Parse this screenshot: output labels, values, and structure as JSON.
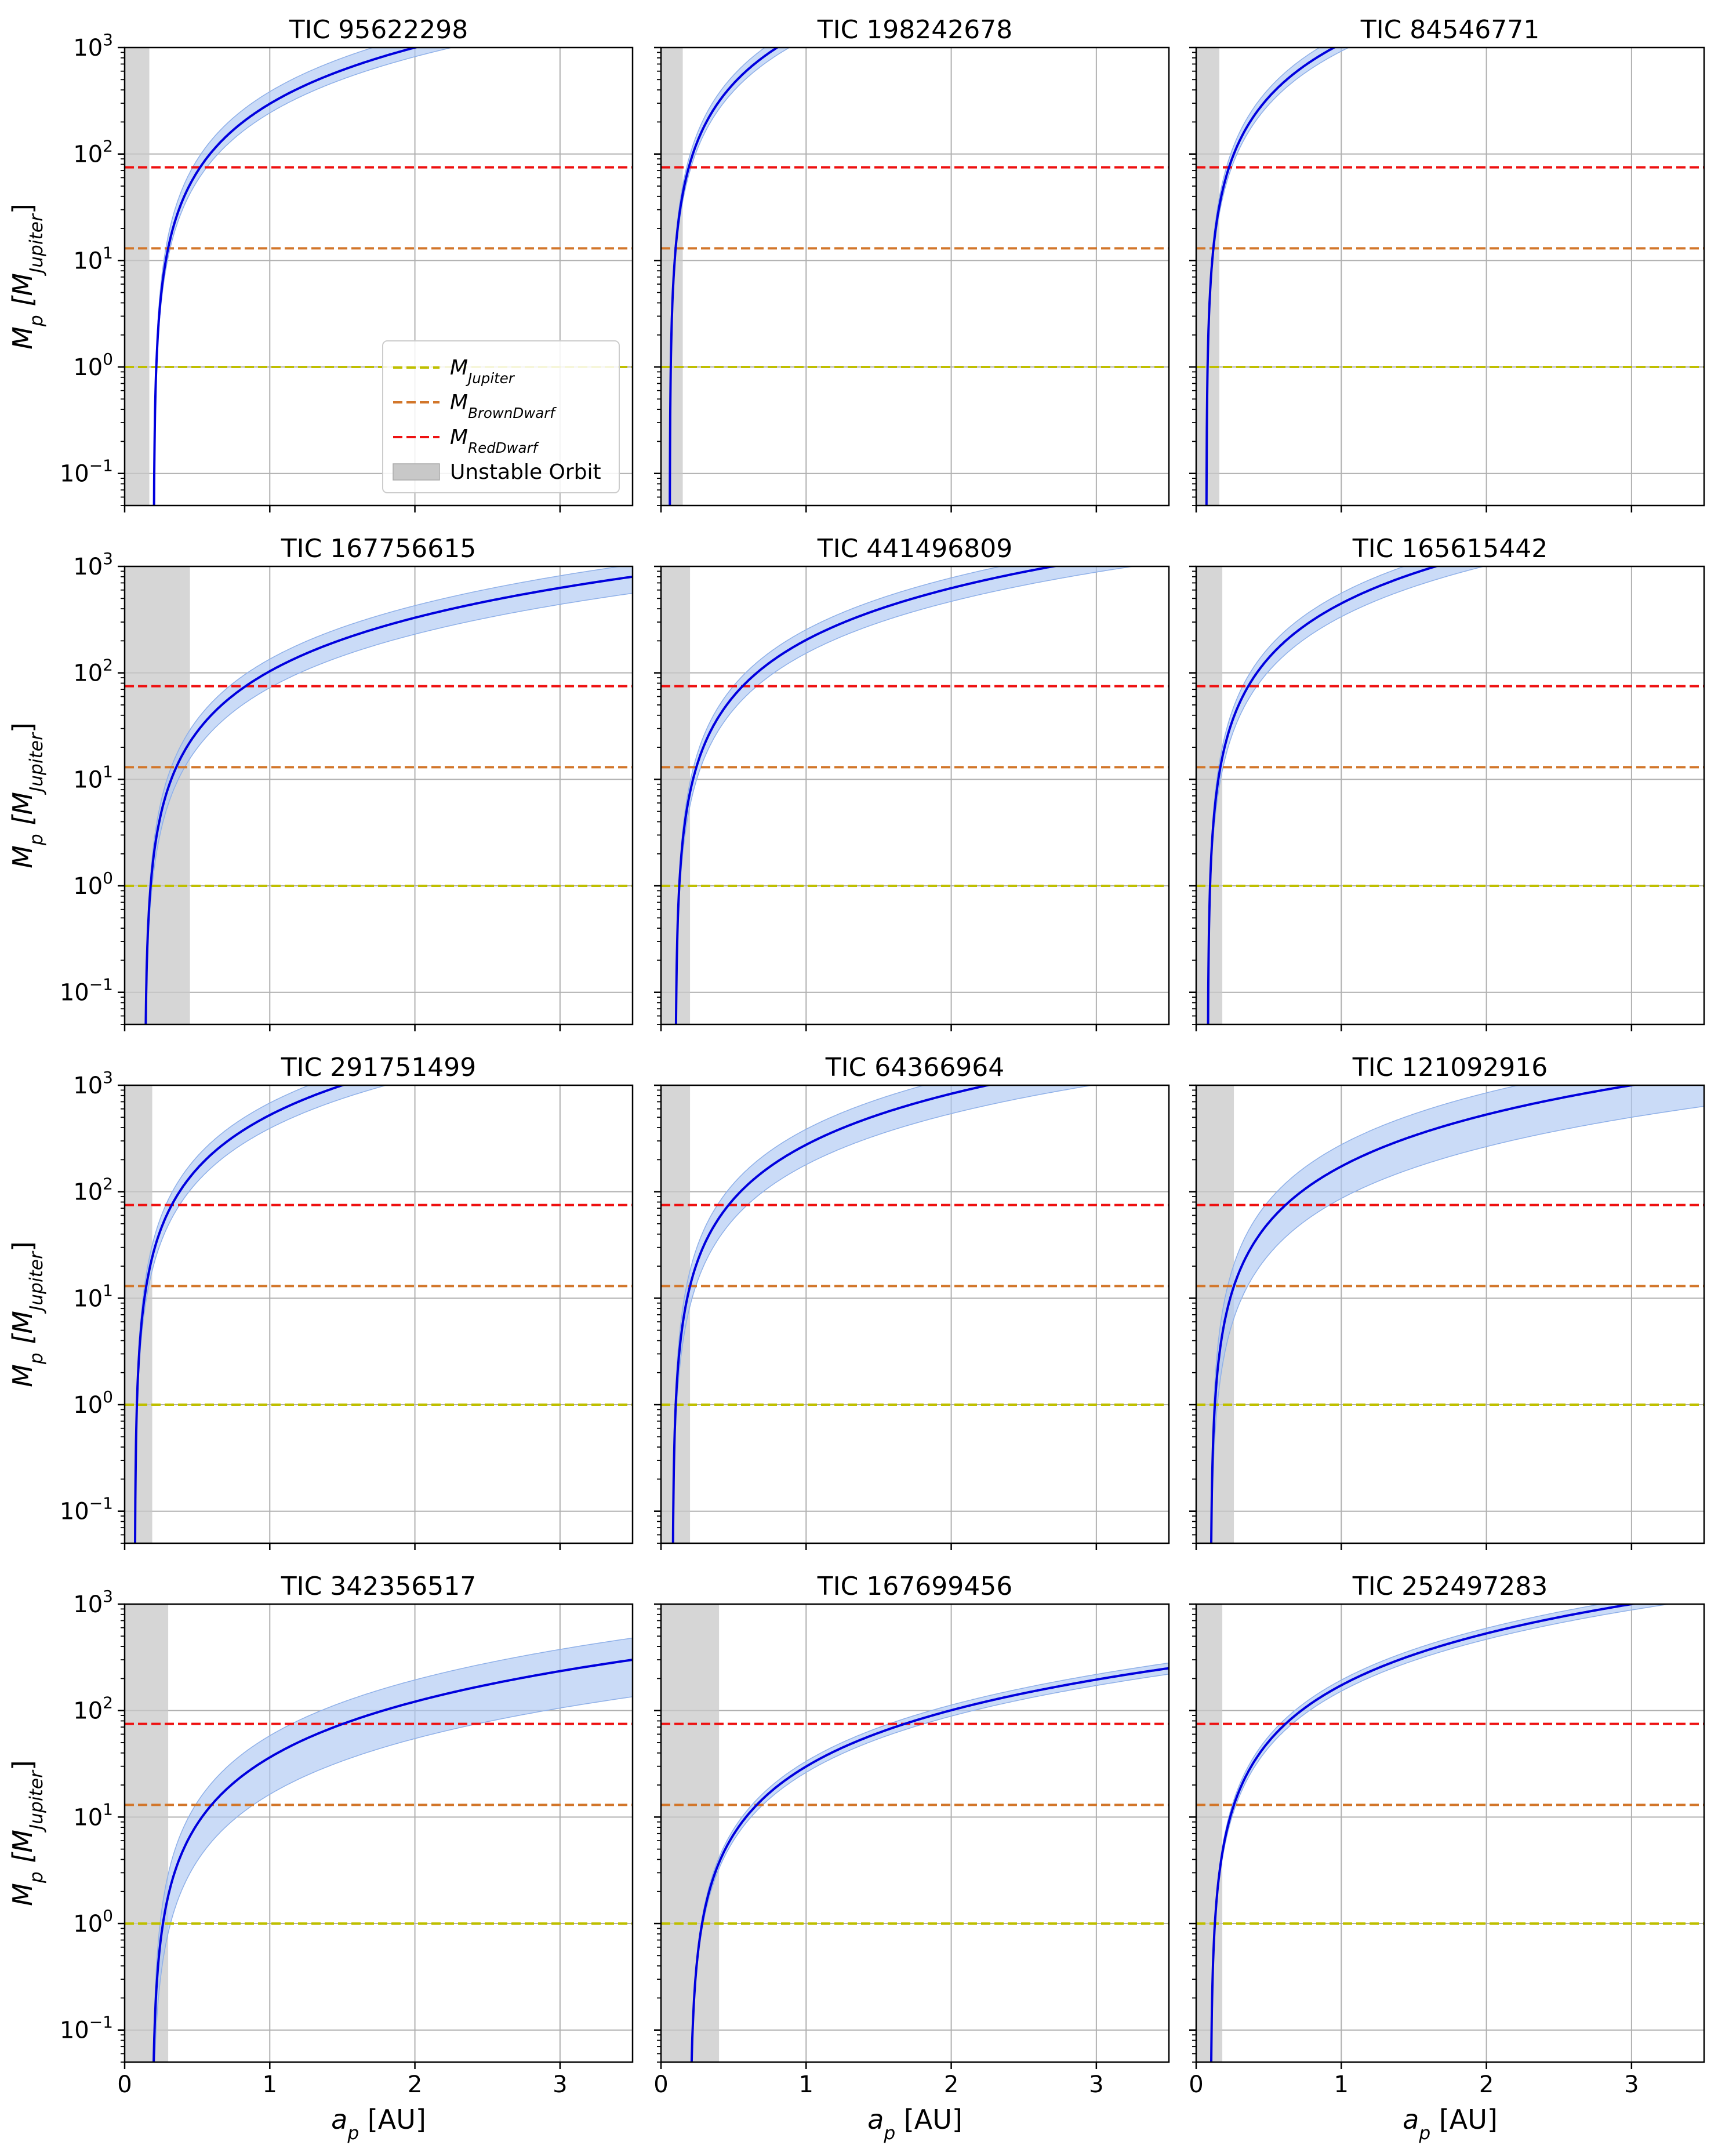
{
  "figure": {
    "ylabel_main": "M",
    "ylabel_sub": "p",
    "ylabel_bracket_open": "[M",
    "ylabel_bracket_sub": "Jupiter",
    "ylabel_bracket_close": "]",
    "xlabel_main": "a",
    "xlabel_sub": "p",
    "xlabel_unit": "[AU]",
    "colors": {
      "curve": "#0000dd",
      "band": "#aec7f2",
      "jupiter": "#bfbf00",
      "brown_dwarf": "#d2762a",
      "red_dwarf": "#ee1111",
      "unstable": "#c8c8c8",
      "grid": "#b0b0b0"
    }
  },
  "legend": {
    "placement": "lower-right (first panel)",
    "jupiter_main": "M",
    "jupiter_sub": "Jupiter",
    "brown_main": "M",
    "brown_sub": "BrownDwarf",
    "red_main": "M",
    "red_sub": "RedDwarf",
    "unstable_label": "Unstable Orbit"
  },
  "chart_data": [
    {
      "type": "line",
      "title": "TIC 95622298",
      "xlim": [
        0,
        3.5
      ],
      "ylim": [
        0.05,
        1000
      ],
      "yscale": "log",
      "reference_lines": {
        "jupiter": 1,
        "brown_dwarf": 13,
        "red_dwarf": 75
      },
      "unstable_max": 0.17,
      "curve": {
        "a0": 0.2,
        "a1": 2.0,
        "m1": 1000
      },
      "band": {
        "lo": 0.82,
        "hi": 1.3
      }
    },
    {
      "type": "line",
      "title": "TIC 198242678",
      "xlim": [
        0,
        3.5
      ],
      "ylim": [
        0.05,
        1000
      ],
      "yscale": "log",
      "reference_lines": {
        "jupiter": 1,
        "brown_dwarf": 13,
        "red_dwarf": 75
      },
      "unstable_max": 0.15,
      "curve": {
        "a0": 0.06,
        "a1": 0.8,
        "m1": 1000
      },
      "band": {
        "lo": 0.85,
        "hi": 1.2
      }
    },
    {
      "type": "line",
      "title": "TIC 84546771",
      "xlim": [
        0,
        3.5
      ],
      "ylim": [
        0.05,
        1000
      ],
      "yscale": "log",
      "reference_lines": {
        "jupiter": 1,
        "brown_dwarf": 13,
        "red_dwarf": 75
      },
      "unstable_max": 0.16,
      "curve": {
        "a0": 0.07,
        "a1": 0.95,
        "m1": 1000
      },
      "band": {
        "lo": 0.85,
        "hi": 1.2
      }
    },
    {
      "type": "line",
      "title": "TIC 167756615",
      "xlim": [
        0,
        3.5
      ],
      "ylim": [
        0.05,
        1000
      ],
      "yscale": "log",
      "reference_lines": {
        "jupiter": 1,
        "brown_dwarf": 13,
        "red_dwarf": 75
      },
      "unstable_max": 0.45,
      "curve": {
        "a0": 0.14,
        "a1": 3.5,
        "m1": 800
      },
      "band": {
        "lo": 0.7,
        "hi": 1.3
      }
    },
    {
      "type": "line",
      "title": "TIC 441496809",
      "xlim": [
        0,
        3.5
      ],
      "ylim": [
        0.05,
        1000
      ],
      "yscale": "log",
      "reference_lines": {
        "jupiter": 1,
        "brown_dwarf": 13,
        "red_dwarf": 75
      },
      "unstable_max": 0.2,
      "curve": {
        "a0": 0.1,
        "a1": 2.7,
        "m1": 1000
      },
      "band": {
        "lo": 0.75,
        "hi": 1.25
      }
    },
    {
      "type": "line",
      "title": "TIC 165615442",
      "xlim": [
        0,
        3.5
      ],
      "ylim": [
        0.05,
        1000
      ],
      "yscale": "log",
      "reference_lines": {
        "jupiter": 1,
        "brown_dwarf": 13,
        "red_dwarf": 75
      },
      "unstable_max": 0.18,
      "curve": {
        "a0": 0.08,
        "a1": 1.65,
        "m1": 1000
      },
      "band": {
        "lo": 0.75,
        "hi": 1.25
      }
    },
    {
      "type": "line",
      "title": "TIC 291751499",
      "xlim": [
        0,
        3.5
      ],
      "ylim": [
        0.05,
        1000
      ],
      "yscale": "log",
      "reference_lines": {
        "jupiter": 1,
        "brown_dwarf": 13,
        "red_dwarf": 75
      },
      "unstable_max": 0.19,
      "curve": {
        "a0": 0.07,
        "a1": 1.5,
        "m1": 1000
      },
      "band": {
        "lo": 0.75,
        "hi": 1.3
      }
    },
    {
      "type": "line",
      "title": "TIC 64366964",
      "xlim": [
        0,
        3.5
      ],
      "ylim": [
        0.05,
        1000
      ],
      "yscale": "log",
      "reference_lines": {
        "jupiter": 1,
        "brown_dwarf": 13,
        "red_dwarf": 75
      },
      "unstable_max": 0.2,
      "curve": {
        "a0": 0.08,
        "a1": 2.25,
        "m1": 1000
      },
      "band": {
        "lo": 0.65,
        "hi": 1.4
      }
    },
    {
      "type": "line",
      "title": "TIC 121092916",
      "xlim": [
        0,
        3.5
      ],
      "ylim": [
        0.05,
        1000
      ],
      "yscale": "log",
      "reference_lines": {
        "jupiter": 1,
        "brown_dwarf": 13,
        "red_dwarf": 75
      },
      "unstable_max": 0.26,
      "curve": {
        "a0": 0.1,
        "a1": 3.0,
        "m1": 1000
      },
      "band": {
        "lo": 0.5,
        "hi": 1.6
      }
    },
    {
      "type": "line",
      "title": "TIC 342356517",
      "xlim": [
        0,
        3.5
      ],
      "ylim": [
        0.05,
        1000
      ],
      "yscale": "log",
      "reference_lines": {
        "jupiter": 1,
        "brown_dwarf": 13,
        "red_dwarf": 75
      },
      "unstable_max": 0.3,
      "curve": {
        "a0": 0.19,
        "a1": 3.5,
        "m1": 300
      },
      "band": {
        "lo": 0.45,
        "hi": 1.6
      }
    },
    {
      "type": "line",
      "title": "TIC 167699456",
      "xlim": [
        0,
        3.5
      ],
      "ylim": [
        0.05,
        1000
      ],
      "yscale": "log",
      "reference_lines": {
        "jupiter": 1,
        "brown_dwarf": 13,
        "red_dwarf": 75
      },
      "unstable_max": 0.4,
      "curve": {
        "a0": 0.2,
        "a1": 3.5,
        "m1": 250
      },
      "band": {
        "lo": 0.88,
        "hi": 1.12
      }
    },
    {
      "type": "line",
      "title": "TIC 252497283",
      "xlim": [
        0,
        3.5
      ],
      "ylim": [
        0.05,
        1000
      ],
      "yscale": "log",
      "reference_lines": {
        "jupiter": 1,
        "brown_dwarf": 13,
        "red_dwarf": 75
      },
      "unstable_max": 0.18,
      "curve": {
        "a0": 0.1,
        "a1": 3.0,
        "m1": 1000
      },
      "band": {
        "lo": 0.88,
        "hi": 1.12
      }
    }
  ]
}
